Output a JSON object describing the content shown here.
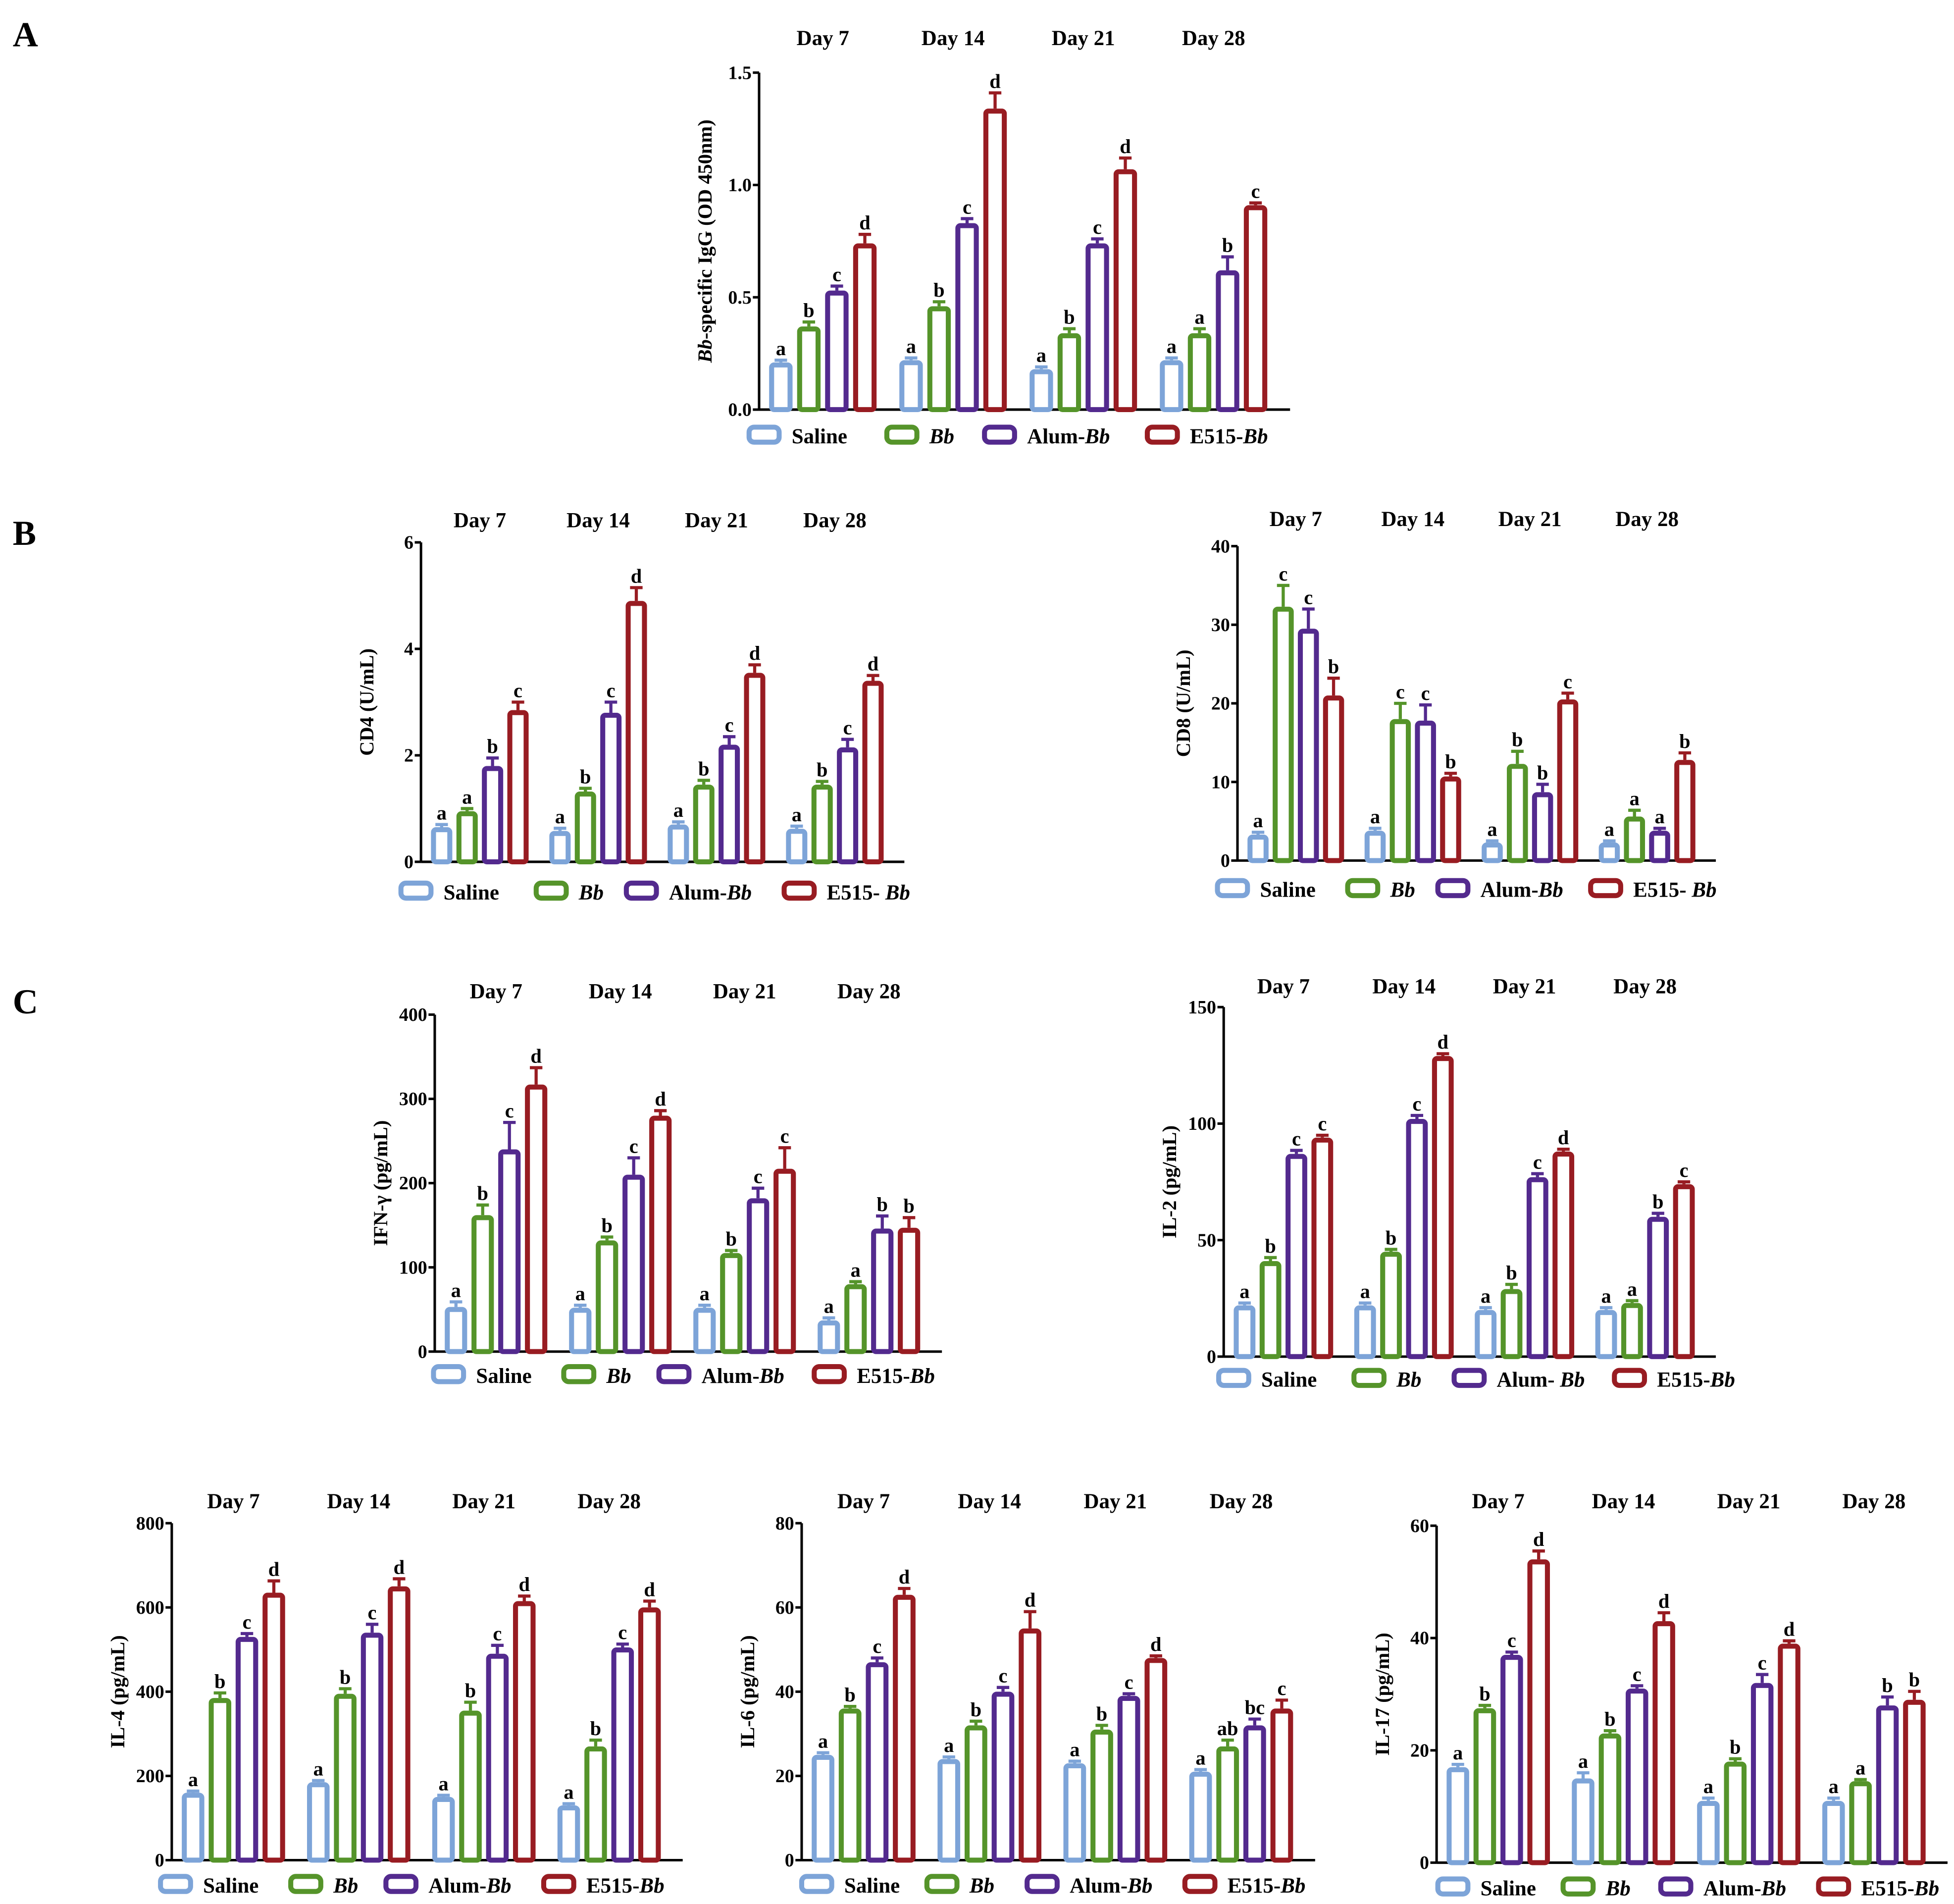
{
  "panel_letters": [
    "A",
    "B",
    "C"
  ],
  "colors": {
    "Saline": "#7da4d8",
    "Bb": "#55942a",
    "Alum-Bb": "#532a8e",
    "E515-Bb": "#981c22"
  },
  "chart_data": [
    {
      "id": "igg",
      "type": "bar",
      "ylabel": "Bb-specific IgG (OD 450nm)",
      "ylim": [
        0,
        1.5
      ],
      "ticks": [
        0,
        0.5,
        1.0,
        1.5
      ],
      "tick_labels": [
        "0.0",
        "0.5",
        "1.0",
        "1.5"
      ],
      "categories": [
        "Day 7",
        "Day 14",
        "Day 21",
        "Day 28"
      ],
      "legend": [
        "Saline",
        "Bb",
        "Alum-Bb",
        "E515-Bb"
      ],
      "series": [
        {
          "name": "Saline",
          "values": [
            0.21,
            0.22,
            0.18,
            0.22
          ],
          "errors": [
            0.01,
            0.01,
            0.01,
            0.01
          ],
          "letters": [
            "a",
            "a",
            "a",
            "a"
          ]
        },
        {
          "name": "Bb",
          "values": [
            0.37,
            0.46,
            0.34,
            0.34
          ],
          "errors": [
            0.02,
            0.02,
            0.02,
            0.02
          ],
          "letters": [
            "b",
            "b",
            "b",
            "a"
          ]
        },
        {
          "name": "Alum-Bb",
          "values": [
            0.53,
            0.83,
            0.74,
            0.62
          ],
          "errors": [
            0.02,
            0.02,
            0.02,
            0.06
          ],
          "letters": [
            "c",
            "c",
            "c",
            "b"
          ]
        },
        {
          "name": "E515-Bb",
          "values": [
            0.74,
            1.34,
            1.07,
            0.91
          ],
          "errors": [
            0.04,
            0.07,
            0.05,
            0.01
          ],
          "letters": [
            "d",
            "d",
            "d",
            "c"
          ]
        }
      ]
    },
    {
      "id": "cd4",
      "type": "bar",
      "ylabel": "CD4 (U/mL)",
      "ylim": [
        0,
        6
      ],
      "ticks": [
        0,
        2,
        4,
        6
      ],
      "tick_labels": [
        "0",
        "2",
        "4",
        "6"
      ],
      "categories": [
        "Day 7",
        "Day 14",
        "Day 21",
        "Day 28"
      ],
      "legend": [
        "Saline",
        "Bb",
        "Alum-Bb",
        "E515- Bb"
      ],
      "series": [
        {
          "name": "Saline",
          "values": [
            0.65,
            0.58,
            0.7,
            0.62
          ],
          "errors": [
            0.05,
            0.05,
            0.05,
            0.05
          ],
          "letters": [
            "a",
            "a",
            "a",
            "a"
          ]
        },
        {
          "name": "Bb",
          "values": [
            0.95,
            1.32,
            1.45,
            1.45
          ],
          "errors": [
            0.05,
            0.06,
            0.08,
            0.06
          ],
          "letters": [
            "a",
            "b",
            "b",
            "b"
          ]
        },
        {
          "name": "Alum-Bb",
          "values": [
            1.8,
            2.8,
            2.2,
            2.15
          ],
          "errors": [
            0.15,
            0.2,
            0.15,
            0.15
          ],
          "letters": [
            "b",
            "c",
            "c",
            "c"
          ]
        },
        {
          "name": "E515-Bb",
          "values": [
            2.85,
            4.9,
            3.55,
            3.4
          ],
          "errors": [
            0.15,
            0.25,
            0.15,
            0.1
          ],
          "letters": [
            "c",
            "d",
            "d",
            "d"
          ]
        }
      ]
    },
    {
      "id": "cd8",
      "type": "bar",
      "ylabel": "CD8 (U/mL)",
      "ylim": [
        0,
        40
      ],
      "ticks": [
        0,
        10,
        20,
        30,
        40
      ],
      "tick_labels": [
        "0",
        "10",
        "20",
        "30",
        "40"
      ],
      "categories": [
        "Day 7",
        "Day 14",
        "Day 21",
        "Day 28"
      ],
      "legend": [
        "Saline",
        "Bb",
        "Alum-Bb",
        "E515- Bb"
      ],
      "series": [
        {
          "name": "Saline",
          "values": [
            3.3,
            3.8,
            2.3,
            2.3
          ],
          "errors": [
            0.3,
            0.3,
            0.2,
            0.2
          ],
          "letters": [
            "a",
            "a",
            "a",
            "a"
          ]
        },
        {
          "name": "Bb",
          "values": [
            32.3,
            18,
            12.3,
            5.6
          ],
          "errors": [
            2.7,
            2,
            1.6,
            0.8
          ],
          "letters": [
            "c",
            "c",
            "b",
            "a"
          ]
        },
        {
          "name": "Alum-Bb",
          "values": [
            29.5,
            17.8,
            8.7,
            3.8
          ],
          "errors": [
            2.5,
            2,
            1.0,
            0.3
          ],
          "letters": [
            "c",
            "c",
            "b",
            "a"
          ]
        },
        {
          "name": "E515-Bb",
          "values": [
            21,
            10.7,
            20.5,
            12.8
          ],
          "errors": [
            2.2,
            0.4,
            0.8,
            0.9
          ],
          "letters": [
            "b",
            "b",
            "c",
            "b"
          ]
        }
      ]
    },
    {
      "id": "ifng",
      "type": "bar",
      "ylabel": "IFN-γ (pg/mL)",
      "ylim": [
        0,
        400
      ],
      "ticks": [
        0,
        100,
        200,
        300,
        400
      ],
      "tick_labels": [
        "0",
        "100",
        "200",
        "300",
        "400"
      ],
      "categories": [
        "Day 7",
        "Day 14",
        "Day 21",
        "Day 28"
      ],
      "legend": [
        "Saline",
        "Bb",
        "Alum-Bb",
        "E515-Bb"
      ],
      "series": [
        {
          "name": "Saline",
          "values": [
            53,
            52,
            52,
            37
          ],
          "errors": [
            6,
            3,
            3,
            3
          ],
          "letters": [
            "a",
            "a",
            "a",
            "a"
          ]
        },
        {
          "name": "Bb",
          "values": [
            162,
            132,
            117,
            80
          ],
          "errors": [
            12,
            4,
            3,
            3
          ],
          "letters": [
            "b",
            "b",
            "b",
            "a"
          ]
        },
        {
          "name": "Alum-Bb",
          "values": [
            240,
            210,
            182,
            146
          ],
          "errors": [
            32,
            20,
            12,
            15
          ],
          "letters": [
            "c",
            "c",
            "c",
            "b"
          ]
        },
        {
          "name": "E515-Bb",
          "values": [
            317,
            280,
            217,
            147
          ],
          "errors": [
            20,
            6,
            25,
            12
          ],
          "letters": [
            "d",
            "d",
            "c",
            "b"
          ]
        }
      ]
    },
    {
      "id": "il2",
      "type": "bar",
      "ylabel": "IL-2 (pg/mL)",
      "ylim": [
        0,
        150
      ],
      "ticks": [
        0,
        50,
        100,
        150
      ],
      "tick_labels": [
        "0",
        "50",
        "100",
        "150"
      ],
      "categories": [
        "Day 7",
        "Day 14",
        "Day 21",
        "Day 28"
      ],
      "legend": [
        "Saline",
        "Bb",
        "Alum- Bb",
        "E515-Bb"
      ],
      "series": [
        {
          "name": "Saline",
          "values": [
            22,
            22,
            20,
            20
          ],
          "errors": [
            1,
            1,
            1,
            1
          ],
          "letters": [
            "a",
            "a",
            "a",
            "a"
          ]
        },
        {
          "name": "Bb",
          "values": [
            41,
            45,
            29,
            23
          ],
          "errors": [
            1.5,
            1,
            2,
            1
          ],
          "letters": [
            "b",
            "b",
            "b",
            "a"
          ]
        },
        {
          "name": "Alum-Bb",
          "values": [
            87,
            102,
            77,
            60
          ],
          "errors": [
            1.5,
            1.5,
            1.5,
            1.5
          ],
          "letters": [
            "c",
            "c",
            "c",
            "b"
          ]
        },
        {
          "name": "E515-Bb",
          "values": [
            94,
            129,
            88,
            74
          ],
          "errors": [
            1,
            1,
            1,
            1
          ],
          "letters": [
            "c",
            "d",
            "d",
            "c"
          ]
        }
      ]
    },
    {
      "id": "il4",
      "type": "bar",
      "ylabel": "IL-4 (pg/mL)",
      "ylim": [
        0,
        800
      ],
      "ticks": [
        0,
        200,
        400,
        600,
        800
      ],
      "tick_labels": [
        "0",
        "200",
        "400",
        "600",
        "800"
      ],
      "categories": [
        "Day 7",
        "Day 14",
        "Day 21",
        "Day 28"
      ],
      "legend": [
        "Saline",
        "Bb",
        "Alum-Bb",
        "E515-Bb"
      ],
      "series": [
        {
          "name": "Saline",
          "values": [
            160,
            185,
            150,
            130
          ],
          "errors": [
            4,
            4,
            4,
            4
          ],
          "letters": [
            "a",
            "a",
            "a",
            "a"
          ]
        },
        {
          "name": "Bb",
          "values": [
            385,
            395,
            355,
            270
          ],
          "errors": [
            12,
            12,
            20,
            15
          ],
          "letters": [
            "b",
            "b",
            "b",
            "b"
          ]
        },
        {
          "name": "Alum-Bb",
          "values": [
            530,
            540,
            490,
            505
          ],
          "errors": [
            8,
            20,
            20,
            8
          ],
          "letters": [
            "c",
            "c",
            "c",
            "c"
          ]
        },
        {
          "name": "E515-Bb",
          "values": [
            635,
            650,
            615,
            600
          ],
          "errors": [
            28,
            18,
            12,
            15
          ],
          "letters": [
            "d",
            "d",
            "d",
            "d"
          ]
        }
      ]
    },
    {
      "id": "il6",
      "type": "bar",
      "ylabel": "IL-6 (pg/mL)",
      "ylim": [
        0,
        80
      ],
      "ticks": [
        0,
        20,
        40,
        60,
        80
      ],
      "tick_labels": [
        "0",
        "20",
        "40",
        "60",
        "80"
      ],
      "categories": [
        "Day 7",
        "Day 14",
        "Day 21",
        "Day 28"
      ],
      "legend": [
        "Saline",
        "Bb",
        "Alum-Bb",
        "E515-Bb"
      ],
      "series": [
        {
          "name": "Saline",
          "values": [
            25,
            24,
            23,
            21
          ],
          "errors": [
            0.5,
            0.5,
            0.5,
            0.5
          ],
          "letters": [
            "a",
            "a",
            "a",
            "a"
          ]
        },
        {
          "name": "Bb",
          "values": [
            36,
            32,
            31,
            27
          ],
          "errors": [
            0.5,
            1,
            1,
            1.5
          ],
          "letters": [
            "b",
            "b",
            "b",
            "ab"
          ]
        },
        {
          "name": "Alum-Bb",
          "values": [
            47,
            40,
            39,
            32
          ],
          "errors": [
            1,
            1,
            0.5,
            1.5
          ],
          "letters": [
            "c",
            "c",
            "c",
            "bc"
          ]
        },
        {
          "name": "E515-Bb",
          "values": [
            63,
            55,
            48,
            36
          ],
          "errors": [
            1.5,
            4,
            0.5,
            2
          ],
          "letters": [
            "d",
            "d",
            "d",
            "c"
          ]
        }
      ]
    },
    {
      "id": "il17",
      "type": "bar",
      "ylabel": "IL-17 (pg/mL)",
      "ylim": [
        0,
        60
      ],
      "ticks": [
        0,
        20,
        40,
        60
      ],
      "tick_labels": [
        "0",
        "20",
        "40",
        "60"
      ],
      "categories": [
        "Day 7",
        "Day 14",
        "Day 21",
        "Day 28"
      ],
      "legend": [
        "Saline",
        "Bb",
        "Alum-Bb",
        "E515-Bb"
      ],
      "series": [
        {
          "name": "Saline",
          "values": [
            17,
            15,
            11,
            11
          ],
          "errors": [
            0.5,
            1,
            0.5,
            0.5
          ],
          "letters": [
            "a",
            "a",
            "a",
            "a"
          ]
        },
        {
          "name": "Bb",
          "values": [
            27.5,
            23,
            18,
            14.5
          ],
          "errors": [
            0.5,
            0.5,
            0.5,
            0.3
          ],
          "letters": [
            "b",
            "b",
            "b",
            "a"
          ]
        },
        {
          "name": "Alum-Bb",
          "values": [
            37,
            31,
            32,
            28
          ],
          "errors": [
            0.5,
            0.5,
            1.5,
            1.5
          ],
          "letters": [
            "c",
            "c",
            "c",
            "b"
          ]
        },
        {
          "name": "E515-Bb",
          "values": [
            54,
            43,
            39,
            29
          ],
          "errors": [
            1.5,
            1.5,
            0.5,
            1.5
          ],
          "letters": [
            "d",
            "d",
            "d",
            "b"
          ]
        }
      ]
    }
  ]
}
